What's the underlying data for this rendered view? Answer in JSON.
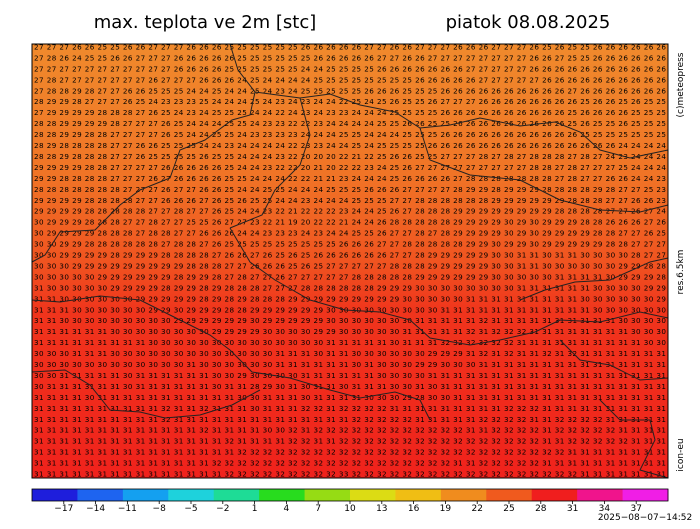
{
  "header": {
    "title": "max. teplota ve 2m [stc]",
    "date": "piatok 08.08.2025"
  },
  "side": {
    "copyright": "(c)meteopress",
    "resolution": "res.6.5km",
    "model": "icon-eu"
  },
  "footer": {
    "timestamp": "2025−08−07−14:52"
  },
  "map": {
    "rows": [
      "27 27 27 26 26 25 25 26 26 27 27 27 26 26 26 25 25 25 25 25 25 26 26 26 26 26 27 27 26 26 27 27 27 26 26 26 27 27 27 26 25 26 25 25 26 26 26 26 26 26",
      "27 28 26 24 25 25 26 26 27 27 27 26 26 26 26 26 25 25 25 25 25 25 26 26 26 26 26 27 27 26 26 27 27 27 27 27 27 27 27 26 26 27 25 25 26 26 26 26 26 26",
      "27 27 27 27 27 27 27 27 27 27 27 26 26 26 26 25 25 25 25 25 25 24 24 25 25 25 25 26 26 26 26 26 26 26 27 27 27 27 27 26 26 26 26 26 26 26 26 26 26 26",
      "27 28 27 27 27 27 27 27 27 26 27 27 27 26 26 26 24 25 24 24 24 24 25 25 25 25 25 25 25 25 26 26 26 26 26 27 27 27 27 27 26 26 26 26 26 26 26 26 26 26",
      "27 28 28 29 28 27 27 26 26 25 25 25 24 24 25 24 24 25 24 23 24 25 25 25 25 25 26 26 26 25 25 25 26 26 26 26 26 26 26 26 26 26 27 26 26 26 26 26 26 26",
      "28 29 29 28 27 27 27 26 25 24 23 23 23 25 24 24 24 25 24 23 24 23 24 24 22 25 24 25 26 25 25 26 27 27 27 26 26 26 26 26 26 26 26 25 26 26 25 26 25 25",
      "27 29 29 29 29 28 28 28 27 26 25 24 23 24 25 25 25 24 24 22 24 23 24 23 23 24 24 24 25 25 25 25 26 26 26 26 26 26 26 26 26 26 25 26 26 26 26 25 25 25",
      "28 28 29 29 29 29 28 27 27 27 26 25 24 24 24 25 25 24 23 23 22 22 23 24 24 24 24 25 25 26 26 25 25 26 26 26 26 26 26 26 26 26 25 26 25 25 26 25 25 25",
      "28 28 29 29 28 28 27 27 27 27 26 25 24 24 25 25 24 23 23 23 23 24 24 24 25 25 24 24 24 25 25 25 26 26 26 26 26 26 26 26 26 26 26 25 25 25 25 25 25 25",
      "28 29 28 28 28 28 27 27 26 26 25 25 25 24 24 23 24 24 24 24 22 23 23 24 24 25 24 25 25 25 25 26 26 26 26 26 26 26 26 26 26 26 26 26 26 26 24 24 24 24",
      "28 28 29 28 28 28 27 27 26 25 25 25 25 26 25 25 24 24 24 23 22 20 20 20 22 21 22 25 26 26 25 25 27 27 27 28 27 28 27 28 28 28 27 28 27 24 23 24 24 24",
      "29 29 29 29 28 28 27 27 27 27 26 26 26 26 26 25 24 24 23 22 22 20 21 20 22 22 23 24 25 26 27 27 27 27 27 27 27 27 27 28 28 27 28 27 27 27 25 24 24 24",
      "29 29 28 28 28 28 27 27 27 26 27 26 26 26 26 25 25 24 24 24 22 22 21 21 23 24 24 24 25 26 26 26 26 27 28 28 28 28 28 28 28 27 28 27 27 26 26 24 24 23",
      "28 28 28 28 28 28 28 27 27 27 26 27 27 26 26 25 24 24 25 25 24 24 24 25 25 25 26 26 26 27 27 27 27 28 29 29 28 29 29 29 28 28 28 28 29 28 27 27 25 23",
      "29 29 29 29 28 28 28 28 27 27 26 26 26 27 26 25 26 25 25 24 24 23 24 24 24 25 25 25 27 27 28 28 28 28 28 28 29 29 29 29 29 29 28 28 28 27 27 26 26 23",
      "29 29 29 29 28 28 28 28 28 27 27 28 27 27 26 25 24 24 23 22 21 22 22 22 23 24 24 25 26 27 28 28 28 29 29 29 29 29 29 29 29 28 28 28 28 27 27 26 27 24",
      "30 29 29 29 28 28 28 27 27 28 27 27 25 25 26 27 27 23 22 21 19 20 22 22 21 24 24 26 28 28 28 28 28 29 29 29 29 30 29 30 29 29 29 28 28 26 26 26 27 26",
      "30 29 29 29 29 28 28 28 27 28 28 27 27 26 26 26 24 24 23 23 23 24 23 24 24 25 25 26 27 27 28 27 28 29 29 29 29 30 29 30 29 29 29 29 28 28 27 27 26 25",
      "30 30 29 29 28 28 28 28 28 28 27 28 28 27 26 25 25 25 25 25 25 25 25 25 26 26 26 27 27 28 28 28 28 28 29 29 30 29 29 30 29 29 29 29 29 28 28 27 27 27",
      "30 30 29 29 29 29 28 29 29 29 28 28 28 28 27 26 26 27 26 25 26 25 26 26 26 26 26 26 27 27 28 29 29 29 29 29 30 30 31 31 30 31 31 30 30 30 30 28 27 27",
      "30 30 30 29 29 29 29 29 29 29 29 29 28 28 28 27 27 26 26 26 25 26 25 27 27 27 27 27 28 28 28 29 29 29 29 29 30 30 31 31 30 30 30 30 30 30 29 29 28 28",
      "30 30 30 30 30 29 29 29 29 29 29 28 29 29 28 27 28 27 27 26 27 27 27 27 27 28 28 28 28 28 29 29 29 29 29 29 30 30 30 30 30 31 31 31 31 30 29 29 29 28",
      "31 30 30 30 30 30 29 29 29 29 28 29 29 28 29 28 28 28 27 27 27 28 28 28 28 28 28 29 29 29 30 30 30 30 30 30 30 30 31 31 31 31 31 31 30 30 30 30 29 29",
      "31 31 30 30 30 30 30 30 29 29 29 29 29 28 29 28 29 28 28 28 29 29 29 29 29 29 29 29 29 30 30 30 30 30 31 31 31 31 31 31 31 31 31 30 30 30 30 30 30 29",
      "31 31 31 30 30 30 30 30 30 29 29 30 29 29 29 28 28 29 29 29 29 29 29 30 30 30 30 30 30 30 30 30 31 31 31 31 31 31 31 31 31 31 31 31 30 30 30 30 30 30",
      "31 31 30 30 30 30 30 30 30 30 30 29 29 29 29 29 29 30 29 29 29 29 29 30 30 30 30 30 30 30 31 31 31 31 31 32 31 31 31 31 31 31 31 31 31 31 30 30 30 30",
      "31 31 31 31 31 31 30 30 30 30 30 30 30 30 29 29 29 29 30 30 30 30 29 29 30 30 30 30 30 31 31 31 31 31 32 31 32 32 32 31 31 31 31 31 31 31 31 30 30 30",
      "31 31 31 31 31 31 31 31 31 30 30 30 30 30 30 30 30 30 30 30 30 30 30 31 31 31 31 31 30 31 31 31 32 32 32 32 32 32 31 31 31 31 31 31 31 31 31 31 30 30",
      "30 30 30 31 31 31 30 30 30 30 30 30 30 30 30 30 30 30 30 31 31 31 30 31 31 30 30 30 30 30 30 29 29 29 31 32 31 32 31 31 32 31 32 31 31 31 31 31 31 31",
      "30 30 30 30 30 30 30 30 30 30 30 30 31 30 30 30 30 30 30 31 31 31 31 31 31 30 31 30 30 30 29 29 30 30 30 31 31 31 31 31 31 31 31 31 31 31 31 31 31 31",
      "30 30 31 31 31 31 31 30 31 31 31 31 31 31 30 30 29 30 30 30 30 31 31 31 31 31 31 30 30 30 30 31 31 31 31 31 31 31 31 31 31 31 31 31 31 31 31 31 31 31",
      "30 31 31 31 31 31 31 30 31 31 31 31 31 31 30 31 31 28 29 30 31 30 31 31 30 31 31 31 30 30 31 30 31 31 31 31 31 31 31 31 31 31 31 31 31 31 31 31 31 31",
      "31 31 31 31 30 31 31 31 31 31 31 31 31 31 31 31 30 30 31 31 31 30 31 31 31 31 30 30 30 29 28 30 30 31 31 31 31 31 31 31 31 31 31 31 31 31 31 31 31 31",
      "31 31 31 31 31 31 31 31 31 31 32 31 31 32 31 31 31 30 31 31 31 32 32 31 32 32 32 32 31 31 31 31 31 31 31 31 31 32 32 32 31 31 31 31 31 31 31 31 31 31",
      "31 31 31 31 31 31 31 31 31 31 32 31 31 31 31 31 31 31 31 31 31 31 31 31 31 32 32 32 32 32 31 31 31 31 31 32 32 32 32 31 31 32 32 32 32 31 31 31 31 31",
      "31 31 31 31 31 31 31 31 31 31 31 31 31 32 31 31 31 31 30 30 32 31 32 32 32 32 32 32 32 32 32 32 32 32 31 31 32 32 32 32 31 32 32 32 32 32 31 31 31 31",
      "31 31 31 31 31 31 31 31 31 31 31 31 31 31 31 32 31 31 31 31 32 32 31 31 32 32 32 32 32 32 32 32 32 32 32 32 32 32 32 32 31 31 32 32 32 32 32 31 31 31",
      "31 31 31 31 31 31 31 31 31 31 31 31 31 31 31 31 32 32 32 32 32 32 32 32 32 32 32 32 32 32 32 32 32 32 32 32 32 32 32 32 32 32 31 31 31 31 31 31 31 31",
      "31 31 31 31 31 31 31 31 31 31 31 31 31 31 32 32 32 32 32 32 32 32 32 32 32 32 32 32 32 32 32 32 32 31 31 32 32 32 32 32 31 31 31 31 31 31 31 31 31 31",
      "31 31 31 31 31 31 31 31 31 31 31 31 31 31 31 32 32 32 32 32 32 32 32 32 33 32 32 32 32 32 32 32 32 32 32 32 32 32 32 32 32 32 32 31 31 31 31 31 31 31"
    ]
  },
  "colorbar": {
    "lim": [
      -20,
      40
    ],
    "ticks": [
      {
        "value": -17,
        "label": "−17"
      },
      {
        "value": -14,
        "label": "−14"
      },
      {
        "value": -11,
        "label": "−11"
      },
      {
        "value": -8,
        "label": "−8"
      },
      {
        "value": -5,
        "label": "−5"
      },
      {
        "value": -2,
        "label": "−2"
      },
      1,
      4,
      7,
      10,
      13,
      16,
      19,
      22,
      25,
      28,
      31,
      34,
      37
    ],
    "colors": [
      "#1e1edc",
      "#1e64f0",
      "#14a0f0",
      "#1ed2dc",
      "#1edc96",
      "#28dc1e",
      "#96dc14",
      "#dcdc14",
      "#f0be14",
      "#f08c1e",
      "#f05a1e",
      "#f01e1e",
      "#f0148c",
      "#f01ee6"
    ]
  }
}
